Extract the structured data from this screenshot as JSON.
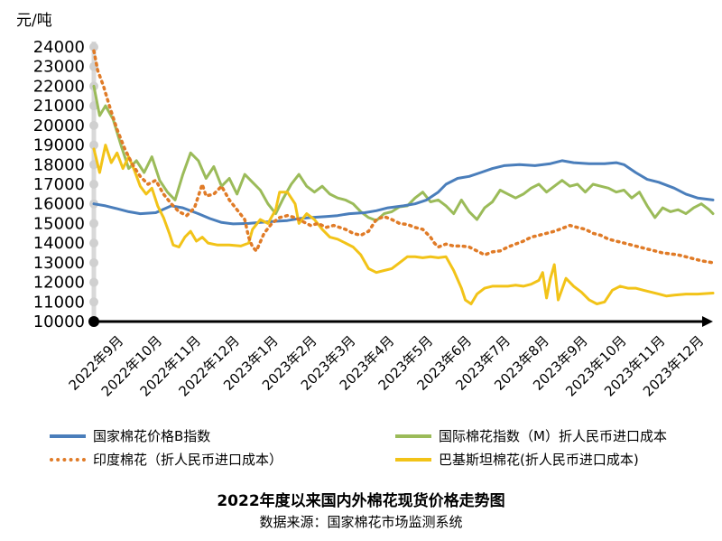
{
  "chart_data": {
    "type": "line",
    "title": "2022年度以来国内外棉花现货价格走势图",
    "subtitle": "数据来源：国家棉花市场监测系统",
    "ylabel": "元/吨",
    "ylim": [
      10000,
      24000
    ],
    "yticks": [
      10000,
      11000,
      12000,
      13000,
      14000,
      15000,
      16000,
      17000,
      18000,
      19000,
      20000,
      21000,
      22000,
      23000,
      24000
    ],
    "x_labels": [
      "2022年9月",
      "2022年10月",
      "2022年11月",
      "2022年12月",
      "2023年1月",
      "2023年2月",
      "2023年3月",
      "2023年4月",
      "2023年5月",
      "2023年6月",
      "2023年7月",
      "2023年8月",
      "2023年9月",
      "2023年10月",
      "2023年11月",
      "2023年12月"
    ],
    "xlim": [
      0,
      16
    ],
    "series": [
      {
        "name": "国家棉花价格B指数",
        "color": "#4a7ebb",
        "style": "solid",
        "points": [
          [
            0,
            16000
          ],
          [
            0.3,
            15900
          ],
          [
            0.6,
            15750
          ],
          [
            0.9,
            15600
          ],
          [
            1.2,
            15500
          ],
          [
            1.6,
            15550
          ],
          [
            2,
            15900
          ],
          [
            2.3,
            15800
          ],
          [
            2.7,
            15500
          ],
          [
            3,
            15250
          ],
          [
            3.3,
            15050
          ],
          [
            3.6,
            14980
          ],
          [
            4,
            15000
          ],
          [
            4.3,
            15050
          ],
          [
            4.6,
            15100
          ],
          [
            5,
            15150
          ],
          [
            5.3,
            15250
          ],
          [
            5.6,
            15300
          ],
          [
            6,
            15350
          ],
          [
            6.3,
            15400
          ],
          [
            6.6,
            15500
          ],
          [
            7,
            15550
          ],
          [
            7.3,
            15650
          ],
          [
            7.6,
            15800
          ],
          [
            8,
            15900
          ],
          [
            8.3,
            16000
          ],
          [
            8.6,
            16200
          ],
          [
            8.9,
            16600
          ],
          [
            9.1,
            17000
          ],
          [
            9.4,
            17300
          ],
          [
            9.7,
            17400
          ],
          [
            10,
            17600
          ],
          [
            10.3,
            17800
          ],
          [
            10.6,
            17950
          ],
          [
            11,
            18000
          ],
          [
            11.4,
            17950
          ],
          [
            11.8,
            18050
          ],
          [
            12.1,
            18200
          ],
          [
            12.4,
            18100
          ],
          [
            12.8,
            18050
          ],
          [
            13.2,
            18050
          ],
          [
            13.5,
            18100
          ],
          [
            13.7,
            18000
          ],
          [
            14,
            17600
          ],
          [
            14.3,
            17250
          ],
          [
            14.6,
            17100
          ],
          [
            15,
            16800
          ],
          [
            15.3,
            16500
          ],
          [
            15.6,
            16300
          ],
          [
            16,
            16200
          ]
        ]
      },
      {
        "name": "国际棉花指数（M）折人民币进口成本",
        "color": "#9bbb59",
        "style": "solid",
        "points": [
          [
            0,
            22000
          ],
          [
            0.15,
            20500
          ],
          [
            0.3,
            21000
          ],
          [
            0.5,
            20300
          ],
          [
            0.7,
            19000
          ],
          [
            0.9,
            17800
          ],
          [
            1.1,
            18200
          ],
          [
            1.3,
            17600
          ],
          [
            1.5,
            18400
          ],
          [
            1.7,
            17200
          ],
          [
            1.9,
            16600
          ],
          [
            2.1,
            16200
          ],
          [
            2.3,
            17500
          ],
          [
            2.5,
            18600
          ],
          [
            2.7,
            18200
          ],
          [
            2.9,
            17300
          ],
          [
            3.1,
            17900
          ],
          [
            3.3,
            16900
          ],
          [
            3.5,
            17300
          ],
          [
            3.7,
            16500
          ],
          [
            3.9,
            17500
          ],
          [
            4.1,
            17100
          ],
          [
            4.3,
            16700
          ],
          [
            4.5,
            16000
          ],
          [
            4.7,
            15500
          ],
          [
            4.9,
            16300
          ],
          [
            5.1,
            17000
          ],
          [
            5.3,
            17500
          ],
          [
            5.5,
            16900
          ],
          [
            5.7,
            16600
          ],
          [
            5.9,
            16900
          ],
          [
            6.1,
            16500
          ],
          [
            6.3,
            16300
          ],
          [
            6.5,
            16200
          ],
          [
            6.7,
            16000
          ],
          [
            6.9,
            15600
          ],
          [
            7.1,
            15300
          ],
          [
            7.3,
            15150
          ],
          [
            7.5,
            15500
          ],
          [
            7.7,
            15600
          ],
          [
            7.9,
            15850
          ],
          [
            8.1,
            15900
          ],
          [
            8.3,
            16300
          ],
          [
            8.5,
            16600
          ],
          [
            8.7,
            16100
          ],
          [
            8.9,
            16200
          ],
          [
            9.1,
            15900
          ],
          [
            9.3,
            15500
          ],
          [
            9.5,
            16200
          ],
          [
            9.7,
            15600
          ],
          [
            9.9,
            15200
          ],
          [
            10.1,
            15800
          ],
          [
            10.3,
            16100
          ],
          [
            10.5,
            16700
          ],
          [
            10.7,
            16500
          ],
          [
            10.9,
            16300
          ],
          [
            11.1,
            16500
          ],
          [
            11.3,
            16800
          ],
          [
            11.5,
            17000
          ],
          [
            11.7,
            16600
          ],
          [
            11.9,
            16900
          ],
          [
            12.1,
            17200
          ],
          [
            12.3,
            16900
          ],
          [
            12.5,
            17000
          ],
          [
            12.7,
            16600
          ],
          [
            12.9,
            17000
          ],
          [
            13.1,
            16900
          ],
          [
            13.3,
            16800
          ],
          [
            13.5,
            16600
          ],
          [
            13.7,
            16700
          ],
          [
            13.9,
            16300
          ],
          [
            14.1,
            16600
          ],
          [
            14.3,
            15900
          ],
          [
            14.5,
            15300
          ],
          [
            14.7,
            15800
          ],
          [
            14.9,
            15600
          ],
          [
            15.1,
            15700
          ],
          [
            15.3,
            15500
          ],
          [
            15.5,
            15800
          ],
          [
            15.7,
            16000
          ],
          [
            15.9,
            15700
          ],
          [
            16,
            15500
          ]
        ]
      },
      {
        "name": "印度棉花（折人民币进口成本）",
        "color": "#e07b27",
        "style": "dotted",
        "points": [
          [
            0,
            23800
          ],
          [
            0.1,
            22800
          ],
          [
            0.25,
            22000
          ],
          [
            0.4,
            21000
          ],
          [
            0.6,
            19800
          ],
          [
            0.8,
            18800
          ],
          [
            1,
            18000
          ],
          [
            1.2,
            17400
          ],
          [
            1.4,
            17000
          ],
          [
            1.6,
            17200
          ],
          [
            1.8,
            16500
          ],
          [
            2,
            16000
          ],
          [
            2.2,
            15600
          ],
          [
            2.4,
            15400
          ],
          [
            2.6,
            15800
          ],
          [
            2.8,
            17000
          ],
          [
            2.9,
            16400
          ],
          [
            3.1,
            16500
          ],
          [
            3.3,
            16900
          ],
          [
            3.5,
            16200
          ],
          [
            3.7,
            15700
          ],
          [
            3.9,
            15200
          ],
          [
            4,
            14300
          ],
          [
            4.1,
            13800
          ],
          [
            4.2,
            13600
          ],
          [
            4.4,
            14500
          ],
          [
            4.6,
            15000
          ],
          [
            4.8,
            15300
          ],
          [
            5,
            15400
          ],
          [
            5.2,
            15300
          ],
          [
            5.4,
            15100
          ],
          [
            5.6,
            14900
          ],
          [
            5.8,
            15000
          ],
          [
            6,
            14800
          ],
          [
            6.2,
            14900
          ],
          [
            6.5,
            14700
          ],
          [
            6.7,
            14500
          ],
          [
            6.9,
            14400
          ],
          [
            7.1,
            14600
          ],
          [
            7.3,
            15200
          ],
          [
            7.5,
            15350
          ],
          [
            7.7,
            15200
          ],
          [
            7.9,
            15000
          ],
          [
            8.1,
            14950
          ],
          [
            8.3,
            14800
          ],
          [
            8.5,
            14700
          ],
          [
            8.7,
            14300
          ],
          [
            8.8,
            14000
          ],
          [
            8.9,
            13800
          ],
          [
            9.1,
            13950
          ],
          [
            9.3,
            13850
          ],
          [
            9.5,
            13850
          ],
          [
            9.7,
            13800
          ],
          [
            9.9,
            13600
          ],
          [
            10.1,
            13400
          ],
          [
            10.3,
            13550
          ],
          [
            10.5,
            13600
          ],
          [
            10.7,
            13800
          ],
          [
            10.9,
            13950
          ],
          [
            11.1,
            14100
          ],
          [
            11.3,
            14300
          ],
          [
            11.5,
            14400
          ],
          [
            11.7,
            14500
          ],
          [
            11.9,
            14600
          ],
          [
            12.1,
            14750
          ],
          [
            12.3,
            14900
          ],
          [
            12.5,
            14800
          ],
          [
            12.7,
            14700
          ],
          [
            12.9,
            14500
          ],
          [
            13.1,
            14400
          ],
          [
            13.3,
            14200
          ],
          [
            13.5,
            14100
          ],
          [
            13.7,
            14000
          ],
          [
            13.9,
            13900
          ],
          [
            14.1,
            13800
          ],
          [
            14.3,
            13700
          ],
          [
            14.5,
            13600
          ],
          [
            14.7,
            13500
          ],
          [
            14.9,
            13450
          ],
          [
            15.1,
            13400
          ],
          [
            15.3,
            13300
          ],
          [
            15.5,
            13200
          ],
          [
            15.7,
            13100
          ],
          [
            16,
            13000
          ]
        ]
      },
      {
        "name": "巴基斯坦棉花(折人民币进口成本)",
        "color": "#f2c318",
        "style": "solid",
        "points": [
          [
            0,
            18800
          ],
          [
            0.15,
            17600
          ],
          [
            0.3,
            19000
          ],
          [
            0.45,
            18100
          ],
          [
            0.6,
            18600
          ],
          [
            0.75,
            17800
          ],
          [
            0.9,
            18400
          ],
          [
            1.05,
            17700
          ],
          [
            1.2,
            16900
          ],
          [
            1.35,
            16500
          ],
          [
            1.5,
            16800
          ],
          [
            1.65,
            15900
          ],
          [
            1.8,
            15300
          ],
          [
            1.95,
            14500
          ],
          [
            2.05,
            13900
          ],
          [
            2.2,
            13800
          ],
          [
            2.35,
            14300
          ],
          [
            2.5,
            14600
          ],
          [
            2.65,
            14100
          ],
          [
            2.8,
            14300
          ],
          [
            2.95,
            14000
          ],
          [
            3.2,
            13900
          ],
          [
            3.5,
            13900
          ],
          [
            3.8,
            13850
          ],
          [
            4,
            14000
          ],
          [
            4.1,
            14700
          ],
          [
            4.3,
            15200
          ],
          [
            4.5,
            15000
          ],
          [
            4.7,
            15700
          ],
          [
            4.8,
            16600
          ],
          [
            5,
            16600
          ],
          [
            5.2,
            16000
          ],
          [
            5.3,
            15000
          ],
          [
            5.5,
            15500
          ],
          [
            5.7,
            15200
          ],
          [
            5.9,
            14700
          ],
          [
            6.1,
            14300
          ],
          [
            6.3,
            14200
          ],
          [
            6.5,
            14000
          ],
          [
            6.7,
            13800
          ],
          [
            6.9,
            13400
          ],
          [
            7.1,
            12700
          ],
          [
            7.3,
            12500
          ],
          [
            7.5,
            12600
          ],
          [
            7.7,
            12700
          ],
          [
            7.9,
            13000
          ],
          [
            8.1,
            13300
          ],
          [
            8.3,
            13300
          ],
          [
            8.5,
            13250
          ],
          [
            8.7,
            13300
          ],
          [
            8.9,
            13250
          ],
          [
            9.1,
            13300
          ],
          [
            9.3,
            12600
          ],
          [
            9.5,
            11700
          ],
          [
            9.6,
            11100
          ],
          [
            9.75,
            10900
          ],
          [
            9.9,
            11400
          ],
          [
            10.1,
            11700
          ],
          [
            10.3,
            11800
          ],
          [
            10.5,
            11800
          ],
          [
            10.7,
            11800
          ],
          [
            10.9,
            11850
          ],
          [
            11.1,
            11800
          ],
          [
            11.3,
            11900
          ],
          [
            11.5,
            12100
          ],
          [
            11.6,
            12500
          ],
          [
            11.7,
            11200
          ],
          [
            11.8,
            12200
          ],
          [
            11.9,
            12900
          ],
          [
            12,
            11100
          ],
          [
            12.2,
            12200
          ],
          [
            12.4,
            11800
          ],
          [
            12.6,
            11500
          ],
          [
            12.8,
            11100
          ],
          [
            13,
            10900
          ],
          [
            13.2,
            11000
          ],
          [
            13.4,
            11600
          ],
          [
            13.6,
            11800
          ],
          [
            13.8,
            11700
          ],
          [
            14,
            11700
          ],
          [
            14.2,
            11600
          ],
          [
            14.4,
            11500
          ],
          [
            14.6,
            11400
          ],
          [
            14.8,
            11300
          ],
          [
            15,
            11350
          ],
          [
            15.3,
            11400
          ],
          [
            15.6,
            11400
          ],
          [
            16,
            11450
          ]
        ]
      }
    ]
  }
}
